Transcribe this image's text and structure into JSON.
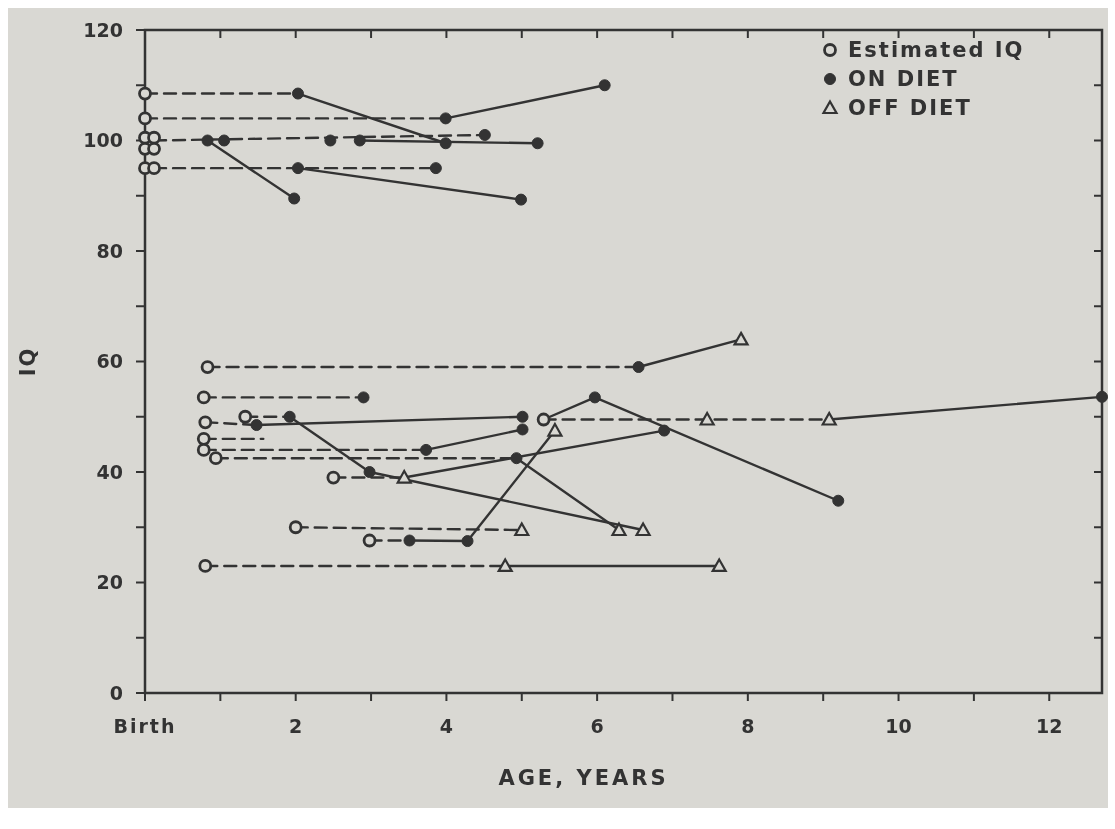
{
  "chart_data": {
    "type": "line",
    "xlabel": "AGE, YEARS",
    "ylabel": "IQ",
    "xlim": [
      0,
      12.7
    ],
    "ylim": [
      0,
      120
    ],
    "xticks": [
      {
        "value": 0,
        "label": "Birth"
      },
      {
        "value": 1,
        "label": null
      },
      2,
      {
        "value": 3,
        "label": null
      },
      4,
      {
        "value": 5,
        "label": null
      },
      6,
      {
        "value": 7,
        "label": null
      },
      8,
      {
        "value": 9,
        "label": null
      },
      10,
      {
        "value": 11,
        "label": null
      },
      12
    ],
    "yticks": [
      0,
      {
        "value": 10,
        "label": null
      },
      20,
      {
        "value": 30,
        "label": null
      },
      40,
      {
        "value": 50,
        "label": null
      },
      60,
      {
        "value": 70,
        "label": null
      },
      80,
      {
        "value": 90,
        "label": null
      },
      100,
      {
        "value": 110,
        "label": null
      },
      120
    ],
    "grid": false,
    "legend": "top right",
    "series": [
      {
        "color": "#333333",
        "line_style": "dashed",
        "marker": "none",
        "x": [
          0,
          2.03
        ],
        "values": [
          108.5,
          108.5
        ]
      },
      {
        "color": "#333333",
        "line_style": "solid",
        "marker": "none",
        "x": [
          2.03,
          3.99
        ],
        "values": [
          108.5,
          99.5
        ]
      },
      {
        "color": "#333333",
        "line_style": "dashed",
        "marker": "none",
        "x": [
          0,
          3.99
        ],
        "values": [
          104,
          104
        ]
      },
      {
        "color": "#333333",
        "line_style": "solid",
        "marker": "none",
        "x": [
          3.99,
          6.1
        ],
        "values": [
          104,
          110
        ]
      },
      {
        "color": "#333333",
        "line_style": "dashed",
        "marker": "none",
        "x": [
          0.12,
          4.51
        ],
        "values": [
          100,
          101
        ]
      },
      {
        "color": "#333333",
        "line_style": "solid",
        "marker": "none",
        "x": [
          0.83,
          1.98
        ],
        "values": [
          100,
          89.5
        ]
      },
      {
        "color": "#333333",
        "line_style": "solid",
        "marker": "none",
        "x": [
          2.85,
          5.21
        ],
        "values": [
          100,
          99.5
        ]
      },
      {
        "color": "#333333",
        "line_style": "dashed",
        "marker": "none",
        "x": [
          0.12,
          3.86
        ],
        "values": [
          95,
          95
        ]
      },
      {
        "color": "#333333",
        "line_style": "solid",
        "marker": "none",
        "x": [
          2.03,
          4.99
        ],
        "values": [
          95,
          89.3
        ]
      },
      {
        "color": "#333333",
        "line_style": "dashed",
        "marker": "none",
        "x": [
          0.83,
          6.55
        ],
        "values": [
          59,
          59
        ]
      },
      {
        "color": "#333333",
        "line_style": "solid",
        "marker": "none",
        "x": [
          6.55,
          7.91
        ],
        "values": [
          59,
          64
        ]
      },
      {
        "color": "#333333",
        "line_style": "dashed",
        "marker": "none",
        "x": [
          0.78,
          2.9
        ],
        "values": [
          53.5,
          53.5
        ]
      },
      {
        "color": "#333333",
        "line_style": "dashed",
        "marker": "none",
        "x": [
          0.8,
          1.48
        ],
        "values": [
          49,
          48.5
        ]
      },
      {
        "color": "#333333",
        "line_style": "solid",
        "marker": "none",
        "x": [
          1.48,
          5.01
        ],
        "values": [
          48.5,
          50
        ]
      },
      {
        "color": "#333333",
        "line_style": "dashed",
        "marker": "none",
        "x": [
          1.33,
          1.92
        ],
        "values": [
          50,
          50
        ]
      },
      {
        "color": "#333333",
        "line_style": "solid",
        "marker": "none",
        "x": [
          1.92,
          2.98,
          6.61
        ],
        "values": [
          50,
          40,
          29.5
        ]
      },
      {
        "color": "#333333",
        "line_style": "dashed",
        "marker": "none",
        "x": [
          0.78,
          1.57
        ],
        "values": [
          46,
          46
        ]
      },
      {
        "color": "#333333",
        "line_style": "dashed",
        "marker": "none",
        "x": [
          0.78,
          3.73
        ],
        "values": [
          44,
          44
        ]
      },
      {
        "color": "#333333",
        "line_style": "solid",
        "marker": "none",
        "x": [
          3.73,
          5.01
        ],
        "values": [
          44,
          47.7
        ]
      },
      {
        "color": "#333333",
        "line_style": "dashed",
        "marker": "none",
        "x": [
          0.94,
          4.93
        ],
        "values": [
          42.5,
          42.5
        ]
      },
      {
        "color": "#333333",
        "line_style": "solid",
        "marker": "none",
        "x": [
          4.93,
          6.29
        ],
        "values": [
          42.5,
          29.5
        ]
      },
      {
        "color": "#333333",
        "line_style": "dashed",
        "marker": "none",
        "x": [
          2.5,
          3.44
        ],
        "values": [
          39,
          39
        ]
      },
      {
        "color": "#333333",
        "line_style": "solid",
        "marker": "none",
        "x": [
          3.44,
          6.89
        ],
        "values": [
          39,
          47.5
        ]
      },
      {
        "color": "#333333",
        "line_style": "solid",
        "marker": "none",
        "x": [
          5.29,
          5.97,
          9.2
        ],
        "values": [
          49.5,
          53.5,
          34.8
        ]
      },
      {
        "color": "#333333",
        "line_style": "dashed",
        "marker": "none",
        "x": [
          5.29,
          9.08
        ],
        "values": [
          49.5,
          49.5
        ]
      },
      {
        "color": "#333333",
        "line_style": "solid",
        "marker": "none",
        "x": [
          9.08,
          12.7
        ],
        "values": [
          49.5,
          53.6
        ]
      },
      {
        "color": "#333333",
        "line_style": "dashed",
        "marker": "none",
        "x": [
          2.0,
          5.0
        ],
        "values": [
          30,
          29.5
        ]
      },
      {
        "color": "#333333",
        "line_style": "dashed",
        "marker": "none",
        "x": [
          2.98,
          3.51
        ],
        "values": [
          27.6,
          27.6
        ]
      },
      {
        "color": "#333333",
        "line_style": "solid",
        "marker": "none",
        "x": [
          3.51,
          4.28,
          5.44
        ],
        "values": [
          27.6,
          27.5,
          47.5
        ]
      },
      {
        "color": "#333333",
        "line_style": "dashed",
        "marker": "none",
        "x": [
          0.8,
          4.78
        ],
        "values": [
          23,
          23
        ]
      },
      {
        "color": "#333333",
        "line_style": "solid",
        "marker": "none",
        "x": [
          4.78,
          7.62
        ],
        "values": [
          23,
          23
        ]
      },
      {
        "type": "scatter",
        "name": "Estimated IQ",
        "color": "#333333",
        "marker": "circle",
        "x": [
          0,
          0,
          0,
          0.12,
          0,
          0.12,
          0,
          0.12,
          0.83,
          0.78,
          0.8,
          1.33,
          0.78,
          0.78,
          0.94,
          2.5,
          5.29,
          2.0,
          2.98,
          0.8
        ],
        "values": [
          108.5,
          104,
          100.5,
          100.5,
          98.5,
          98.5,
          95,
          95,
          59,
          53.5,
          49,
          50,
          46,
          44,
          42.5,
          39,
          49.5,
          30,
          27.6,
          23
        ]
      },
      {
        "type": "scatter",
        "name": "ON DIET",
        "color": "#333333",
        "marker": "circle",
        "x": [
          2.03,
          3.99,
          6.1,
          3.99,
          0.83,
          1.05,
          2.46,
          2.85,
          4.51,
          5.21,
          1.98,
          2.03,
          3.86,
          4.99,
          6.55,
          2.9,
          1.48,
          5.01,
          1.92,
          2.98,
          3.73,
          5.01,
          4.93,
          6.89,
          5.97,
          9.2,
          12.7,
          3.51,
          4.28
        ],
        "values": [
          108.5,
          104,
          110,
          99.5,
          100,
          100,
          100,
          100,
          101,
          99.5,
          89.5,
          95,
          95,
          89.3,
          59,
          53.5,
          48.5,
          50,
          50,
          40,
          44,
          47.7,
          42.5,
          47.5,
          53.5,
          34.8,
          53.6,
          27.6,
          27.5
        ]
      },
      {
        "type": "scatter",
        "name": "OFF DIET",
        "color": "#333333",
        "marker": "triangle",
        "x": [
          7.91,
          3.44,
          6.29,
          6.61,
          7.46,
          9.08,
          5.0,
          5.44,
          4.78,
          7.62
        ],
        "values": [
          64,
          39,
          29.5,
          29.5,
          49.5,
          49.5,
          29.5,
          47.5,
          23,
          23
        ]
      }
    ]
  }
}
